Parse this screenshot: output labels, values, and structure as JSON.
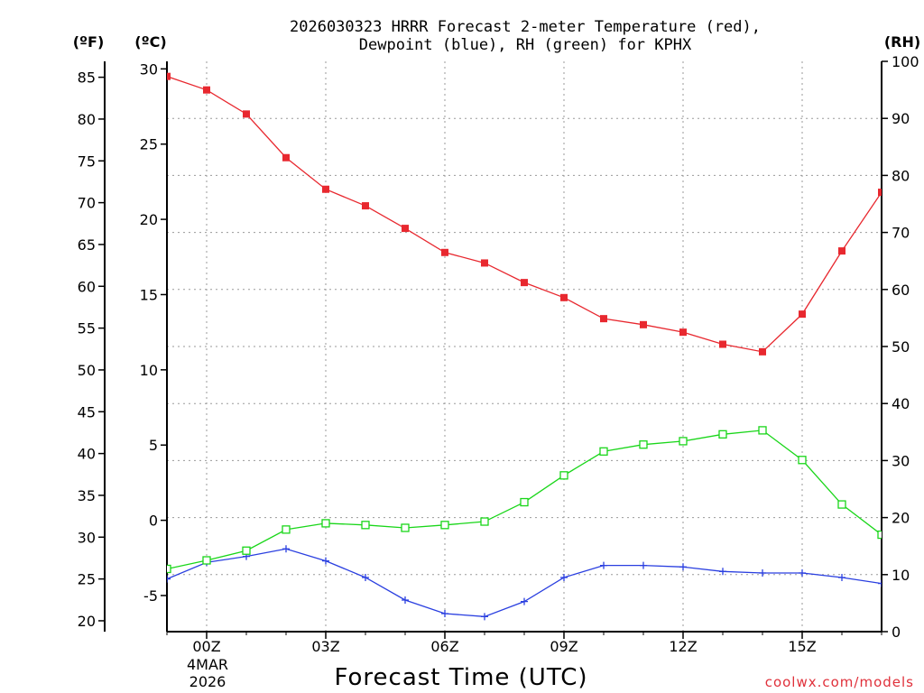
{
  "chart_data": {
    "type": "line",
    "title_line1": "2026030323 HRRR Forecast 2-meter Temperature (red),",
    "title_line2": "Dewpoint (blue), RH (green) for KPHX",
    "xlabel": "Forecast Time (UTC)",
    "x_hours": [
      -1,
      0,
      1,
      2,
      3,
      4,
      5,
      6,
      7,
      8,
      9,
      10,
      11,
      12,
      13,
      14,
      15,
      16,
      17
    ],
    "x_range": [
      -1,
      17
    ],
    "x_ticks": [
      {
        "hour": 0,
        "label": "00Z"
      },
      {
        "hour": 3,
        "label": "03Z"
      },
      {
        "hour": 6,
        "label": "06Z"
      },
      {
        "hour": 9,
        "label": "09Z"
      },
      {
        "hour": 12,
        "label": "12Z"
      },
      {
        "hour": 15,
        "label": "15Z"
      }
    ],
    "date_label_line1": "4MAR",
    "date_label_line2": "2026",
    "left_axis_f": {
      "unit_label": "(ºF)",
      "range": [
        18.7,
        86.9
      ],
      "ticks": [
        20,
        25,
        30,
        35,
        40,
        45,
        50,
        55,
        60,
        65,
        70,
        75,
        80,
        85
      ]
    },
    "left_axis_c": {
      "unit_label": "(ºC)",
      "range": [
        -7.4,
        30.5
      ],
      "ticks": [
        -5,
        0,
        5,
        10,
        15,
        20,
        25,
        30
      ]
    },
    "right_axis_rh": {
      "unit_label": "(RH)",
      "range": [
        0,
        100
      ],
      "ticks": [
        0,
        10,
        20,
        30,
        40,
        50,
        60,
        70,
        80,
        90,
        100
      ]
    },
    "series": [
      {
        "name": "2-meter Temperature",
        "unit": "C",
        "color": "#e8282f",
        "marker": "filled-square",
        "values": [
          29.5,
          28.6,
          27.0,
          24.1,
          22.0,
          20.9,
          19.4,
          17.8,
          17.1,
          15.8,
          14.8,
          13.4,
          13.0,
          12.5,
          11.7,
          11.2,
          13.7,
          17.9,
          21.8
        ]
      },
      {
        "name": "Dewpoint",
        "unit": "C",
        "color": "#2a3fe0",
        "marker": "plus",
        "values": [
          -3.9,
          -2.8,
          -2.4,
          -1.9,
          -2.7,
          -3.8,
          -5.3,
          -6.2,
          -6.4,
          -5.4,
          -3.8,
          -3.0,
          -3.0,
          -3.1,
          -3.4,
          -3.5,
          -3.5,
          -3.8,
          -4.2
        ]
      },
      {
        "name": "RH",
        "unit": "%",
        "color": "#19d619",
        "marker": "open-square",
        "values": [
          11,
          12.5,
          14.2,
          17.9,
          19.0,
          18.7,
          18.2,
          18.7,
          19.3,
          22.7,
          27.4,
          31.6,
          32.8,
          33.4,
          34.6,
          35.3,
          30.1,
          22.3,
          17.0
        ]
      }
    ],
    "grid": true
  },
  "credit": "coolwx.com/models"
}
